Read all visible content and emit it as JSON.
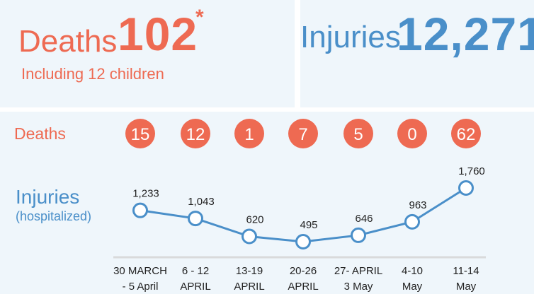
{
  "summary": {
    "deaths_label": "Deaths",
    "deaths_value": "102",
    "deaths_mark": "*",
    "deaths_note": "Including 12 children",
    "injuries_label": "Injuries",
    "injuries_value": "12,271"
  },
  "colors": {
    "deaths": "#ee6a52",
    "injuries": "#4a8fc9",
    "panel_bg": "#eff6fb",
    "baseline": "#d9dadb"
  },
  "chart_data": {
    "type": "line",
    "categories": [
      [
        "30 MARCH",
        "- 5 April"
      ],
      [
        "6 - 12",
        "APRIL"
      ],
      [
        "13-19",
        "APRIL"
      ],
      [
        "20-26",
        "APRIL"
      ],
      [
        "27- APRIL",
        "3 May"
      ],
      [
        "4-10",
        "May"
      ],
      [
        "11-14",
        "May"
      ]
    ],
    "deaths_row_label": "Deaths",
    "deaths": [
      15,
      12,
      1,
      7,
      5,
      0,
      62
    ],
    "injuries_label": "Injuries",
    "injuries_sublabel": "(hospitalized)",
    "injuries": [
      1233,
      1043,
      620,
      495,
      646,
      963,
      1760
    ],
    "injury_labels": [
      "1,233",
      "1,043",
      "620",
      "495",
      "646",
      "963",
      "1,760"
    ]
  }
}
